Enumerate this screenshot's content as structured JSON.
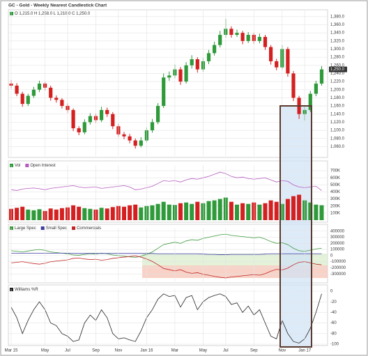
{
  "chart_data": [
    {
      "type": "candlestick",
      "title": "GC - Gold - Weekly Nearest Candlestick Chart",
      "legend": "O 1,215.0 H 1,258.0 L 1,210.0 C 1,250.0",
      "legend_color": "#2e9a3a",
      "up_color": "#2e9a3a",
      "down_color": "#d42020",
      "grid": true,
      "last_label": "1,250.0",
      "ylim": [
        1040,
        1390
      ],
      "yticks": [
        {
          "value": 1060,
          "label": "1,060.0"
        },
        {
          "value": 1080,
          "label": "1,080.0"
        },
        {
          "value": 1100,
          "label": "1,100.0"
        },
        {
          "value": 1120,
          "label": "1,120.0"
        },
        {
          "value": 1140,
          "label": "1,140.0"
        },
        {
          "value": 1160,
          "label": "1,160.0"
        },
        {
          "value": 1180,
          "label": "1,180.0"
        },
        {
          "value": 1200,
          "label": "1,200.0"
        },
        {
          "value": 1220,
          "label": "1,220.0"
        },
        {
          "value": 1240,
          "label": "1,240.0"
        },
        {
          "value": 1260,
          "label": "1,260.0"
        },
        {
          "value": 1280,
          "label": "1,280.0"
        },
        {
          "value": 1300,
          "label": "1,300.0"
        },
        {
          "value": 1320,
          "label": "1,320.0"
        },
        {
          "value": 1340,
          "label": "1,340.0"
        },
        {
          "value": 1360,
          "label": "1,360.0"
        },
        {
          "value": 1380,
          "label": "1,380.0"
        }
      ],
      "ohlc": [
        [
          1215,
          1224,
          1203,
          1210
        ],
        [
          1210,
          1216,
          1184,
          1190
        ],
        [
          1190,
          1195,
          1158,
          1165
        ],
        [
          1165,
          1190,
          1160,
          1185
        ],
        [
          1185,
          1207,
          1180,
          1200
        ],
        [
          1200,
          1222,
          1194,
          1215
        ],
        [
          1215,
          1219,
          1198,
          1205
        ],
        [
          1205,
          1210,
          1173,
          1180
        ],
        [
          1180,
          1186,
          1168,
          1175
        ],
        [
          1175,
          1179,
          1154,
          1160
        ],
        [
          1160,
          1166,
          1143,
          1150
        ],
        [
          1150,
          1154,
          1098,
          1105
        ],
        [
          1105,
          1110,
          1088,
          1095
        ],
        [
          1095,
          1127,
          1090,
          1120
        ],
        [
          1120,
          1142,
          1114,
          1135
        ],
        [
          1135,
          1141,
          1118,
          1125
        ],
        [
          1125,
          1158,
          1120,
          1150
        ],
        [
          1150,
          1156,
          1133,
          1140
        ],
        [
          1140,
          1145,
          1103,
          1110
        ],
        [
          1110,
          1116,
          1084,
          1090
        ],
        [
          1090,
          1096,
          1078,
          1085
        ],
        [
          1085,
          1091,
          1068,
          1075
        ],
        [
          1075,
          1080,
          1055,
          1062
        ],
        [
          1062,
          1083,
          1058,
          1075
        ],
        [
          1075,
          1107,
          1070,
          1100
        ],
        [
          1100,
          1128,
          1094,
          1120
        ],
        [
          1120,
          1167,
          1115,
          1160
        ],
        [
          1160,
          1240,
          1155,
          1230
        ],
        [
          1230,
          1245,
          1222,
          1235
        ],
        [
          1235,
          1262,
          1228,
          1250
        ],
        [
          1250,
          1256,
          1212,
          1220
        ],
        [
          1220,
          1268,
          1215,
          1260
        ],
        [
          1260,
          1285,
          1252,
          1275
        ],
        [
          1275,
          1280,
          1242,
          1250
        ],
        [
          1250,
          1278,
          1244,
          1270
        ],
        [
          1270,
          1298,
          1263,
          1290
        ],
        [
          1290,
          1318,
          1284,
          1310
        ],
        [
          1310,
          1345,
          1304,
          1335
        ],
        [
          1335,
          1375,
          1328,
          1350
        ],
        [
          1350,
          1356,
          1328,
          1335
        ],
        [
          1335,
          1348,
          1330,
          1340
        ],
        [
          1340,
          1345,
          1312,
          1320
        ],
        [
          1320,
          1342,
          1315,
          1335
        ],
        [
          1335,
          1340,
          1313,
          1320
        ],
        [
          1320,
          1338,
          1314,
          1330
        ],
        [
          1330,
          1335,
          1298,
          1305
        ],
        [
          1305,
          1310,
          1262,
          1270
        ],
        [
          1270,
          1276,
          1248,
          1255
        ],
        [
          1255,
          1310,
          1250,
          1300
        ],
        [
          1300,
          1305,
          1232,
          1240
        ],
        [
          1240,
          1246,
          1172,
          1180
        ],
        [
          1180,
          1185,
          1128,
          1140
        ],
        [
          1140,
          1158,
          1124,
          1150
        ],
        [
          1150,
          1197,
          1145,
          1190
        ],
        [
          1190,
          1222,
          1184,
          1215
        ],
        [
          1215,
          1258,
          1210,
          1250
        ]
      ]
    },
    {
      "type": "bar",
      "ylim": [
        0,
        750000
      ],
      "yticks": [
        {
          "value": 100000,
          "label": "100K"
        },
        {
          "value": 200000,
          "label": "200K"
        },
        {
          "value": 300000,
          "label": "300K"
        },
        {
          "value": 400000,
          "label": "400K"
        },
        {
          "value": 500000,
          "label": "500K"
        },
        {
          "value": 600000,
          "label": "600K"
        },
        {
          "value": 700000,
          "label": "700K"
        }
      ],
      "series": [
        {
          "name": "Vol",
          "color": "#2e9a3a",
          "values": [
            160000,
            175000,
            190000,
            150000,
            140000,
            155000,
            130000,
            165000,
            150000,
            170000,
            180000,
            210000,
            190000,
            170000,
            160000,
            150000,
            175000,
            165000,
            185000,
            200000,
            190000,
            210000,
            220000,
            180000,
            200000,
            210000,
            230000,
            260000,
            220000,
            215000,
            240000,
            250000,
            230000,
            260000,
            240000,
            270000,
            280000,
            300000,
            320000,
            260000,
            220000,
            240000,
            230000,
            250000,
            220000,
            240000,
            280000,
            260000,
            230000,
            300000,
            340000,
            360000,
            280000,
            250000,
            220000,
            211188
          ]
        },
        {
          "name": "Open Interest",
          "type": "line",
          "color": "#b55bc0",
          "values": [
            430000,
            420000,
            440000,
            450000,
            455000,
            445000,
            430000,
            450000,
            460000,
            470000,
            480000,
            490000,
            470000,
            460000,
            465000,
            470000,
            450000,
            460000,
            470000,
            480000,
            490000,
            470000,
            430000,
            440000,
            460000,
            480000,
            520000,
            560000,
            550000,
            560000,
            540000,
            570000,
            590000,
            580000,
            600000,
            620000,
            650000,
            680000,
            660000,
            620000,
            600000,
            610000,
            590000,
            580000,
            590000,
            600000,
            570000,
            540000,
            560000,
            550000,
            500000,
            470000,
            460000,
            470000,
            480000,
            419233
          ]
        }
      ]
    },
    {
      "type": "line",
      "ylim": [
        -400000,
        420000
      ],
      "yticks": [
        -300000,
        -200000,
        -100000,
        0,
        100000,
        200000,
        300000,
        400000
      ],
      "series": [
        {
          "name": "Large Spec",
          "color": "#3c9a3c",
          "values": [
            80000,
            70000,
            60000,
            75000,
            90000,
            100000,
            85000,
            60000,
            50000,
            40000,
            30000,
            10000,
            5000,
            20000,
            30000,
            25000,
            40000,
            30000,
            10000,
            0,
            -10000,
            -20000,
            -30000,
            -10000,
            20000,
            60000,
            120000,
            180000,
            200000,
            220000,
            200000,
            240000,
            260000,
            250000,
            280000,
            300000,
            320000,
            340000,
            350000,
            330000,
            320000,
            310000,
            300000,
            290000,
            300000,
            270000,
            230000,
            200000,
            210000,
            180000,
            120000,
            80000,
            70000,
            90000,
            110000,
            120000
          ]
        },
        {
          "name": "Small Spec",
          "color": "#3a3aa0",
          "values": [
            40000,
            40000,
            40000,
            40000,
            40000,
            40000,
            40000,
            40000,
            40000,
            40000,
            40000,
            35000,
            35000,
            35000,
            35000,
            35000,
            35000,
            35000,
            35000,
            35000,
            35000,
            35000,
            35000,
            35000,
            35000,
            35000,
            30000,
            30000,
            30000,
            30000,
            30000,
            30000,
            30000,
            30000,
            25000,
            20000,
            20000,
            15000,
            15000,
            20000,
            20000,
            20000,
            20000,
            20000,
            20000,
            25000,
            30000,
            30000,
            30000,
            30000,
            30000,
            30000,
            30000,
            30000,
            30000,
            30000
          ]
        },
        {
          "name": "Commercials",
          "color": "#c02424",
          "values": [
            -120000,
            -110000,
            -100000,
            -115000,
            -130000,
            -140000,
            -125000,
            -100000,
            -90000,
            -80000,
            -70000,
            -45000,
            -40000,
            -55000,
            -65000,
            -60000,
            -75000,
            -65000,
            -45000,
            -35000,
            -25000,
            -15000,
            -5000,
            -25000,
            -55000,
            -95000,
            -150000,
            -210000,
            -230000,
            -250000,
            -230000,
            -270000,
            -290000,
            -280000,
            -305000,
            -320000,
            -340000,
            -355000,
            -365000,
            -350000,
            -340000,
            -330000,
            -320000,
            -310000,
            -320000,
            -295000,
            -255000,
            -225000,
            -235000,
            -205000,
            -150000,
            -110000,
            -100000,
            -120000,
            -140000,
            -150000
          ]
        }
      ]
    },
    {
      "type": "line",
      "ylim": [
        -100,
        0
      ],
      "yticks": [
        -100,
        -80,
        -60,
        -40,
        -20,
        0
      ],
      "xticks": [
        {
          "value": 0,
          "label": "Mar 15"
        },
        {
          "value": 6,
          "label": "May"
        },
        {
          "value": 10,
          "label": "Jul"
        },
        {
          "value": 15,
          "label": "Sep"
        },
        {
          "value": 19,
          "label": "Nov"
        },
        {
          "value": 24,
          "label": "Jan 16"
        },
        {
          "value": 29,
          "label": "Mar"
        },
        {
          "value": 34,
          "label": "May"
        },
        {
          "value": 38,
          "label": "Jul"
        },
        {
          "value": 43,
          "label": "Sep"
        },
        {
          "value": 48,
          "label": "Nov"
        },
        {
          "value": 52,
          "label": "Jan 17"
        }
      ],
      "series": [
        {
          "name": "Williams %R",
          "color": "#222222",
          "values": [
            -30,
            -50,
            -80,
            -55,
            -35,
            -20,
            -35,
            -60,
            -65,
            -80,
            -85,
            -95,
            -92,
            -60,
            -45,
            -55,
            -35,
            -50,
            -80,
            -90,
            -88,
            -92,
            -95,
            -75,
            -50,
            -35,
            -15,
            -5,
            -10,
            -8,
            -30,
            -12,
            -8,
            -35,
            -20,
            -12,
            -8,
            -5,
            -10,
            -25,
            -22,
            -40,
            -28,
            -45,
            -35,
            -60,
            -85,
            -90,
            -55,
            -80,
            -95,
            -98,
            -90,
            -70,
            -40,
            -5
          ]
        }
      ]
    }
  ]
}
